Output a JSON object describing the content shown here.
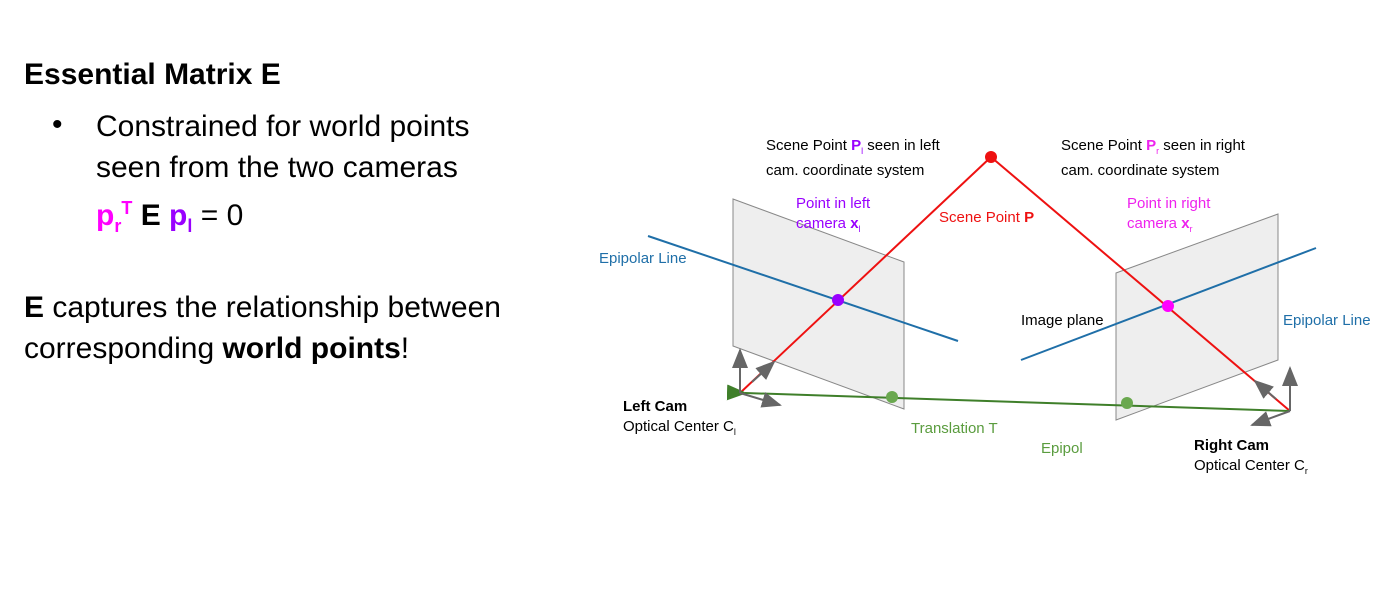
{
  "slide": {
    "title": "Essential Matrix E",
    "bullet_line1": "Constrained for world points",
    "bullet_line2": "seen from the two cameras",
    "equation": {
      "p_r": "p",
      "r_sub": "r",
      "T_sup": "T",
      "E": "E",
      "p_l": "p",
      "l_sub": "l",
      "rest": "= 0"
    },
    "statement": {
      "E": "E",
      "line1_rest": "captures the relationship between",
      "line2_pre": "corresponding ",
      "line2_bold": "world points",
      "line2_end": "!"
    }
  },
  "diagram": {
    "scene_left": {
      "pre": "Scene Point ",
      "P": "P",
      "sub": "l",
      "post": " seen in left",
      "line2": "cam. coordinate system"
    },
    "scene_right": {
      "pre": "Scene Point ",
      "P": "P",
      "sub": "r",
      "post": " seen in right",
      "line2": "cam. coordinate system"
    },
    "point_left": {
      "line1": "Point in left",
      "line2": "camera ",
      "x": "x",
      "sub": "l"
    },
    "point_right": {
      "line1": "Point in right",
      "line2": "camera ",
      "x": "x",
      "sub": "r"
    },
    "scene_point": {
      "pre": "Scene Point ",
      "P": "P"
    },
    "epipolar_left": "Epipolar Line",
    "epipolar_right": "Epipolar Line",
    "image_plane": "Image plane",
    "translation": "Translation T",
    "epipol": "Epipol",
    "left_cam": {
      "name": "Left Cam",
      "center": "Optical Center C",
      "sub": "l"
    },
    "right_cam": {
      "name": "Right Cam",
      "center": "Optical Center C",
      "sub": "r"
    },
    "colors": {
      "ray": "#ee1111",
      "epipolar": "#1f6fa8",
      "translation": "#3f7f2a",
      "epipole": "#6aa84f",
      "point_left": "#9900ff",
      "point_right": "#ff00ff",
      "plane": "#eeeeee",
      "axes": "#666666"
    }
  }
}
